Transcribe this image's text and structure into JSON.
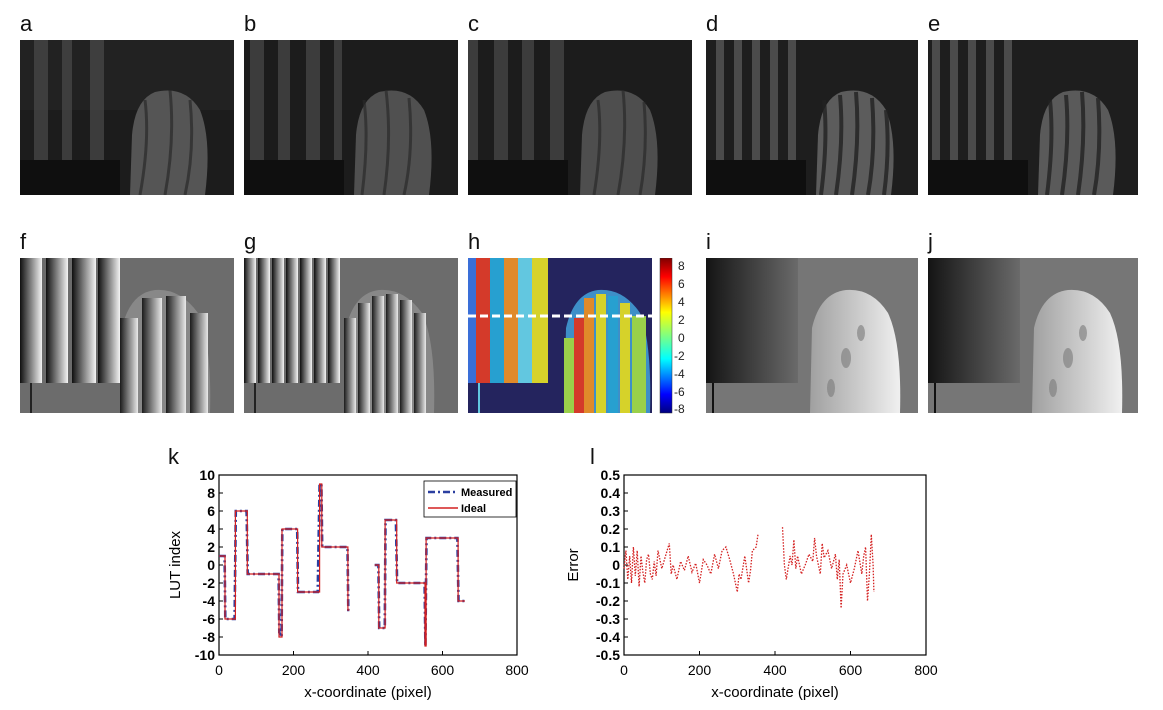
{
  "panel_labels": {
    "a": "a",
    "b": "b",
    "c": "c",
    "d": "d",
    "e": "e",
    "f": "f",
    "g": "g",
    "h": "h",
    "i": "i",
    "j": "j",
    "k": "k",
    "l": "l"
  },
  "colorbar": {
    "ticks": [
      "8",
      "6",
      "4",
      "2",
      "0",
      "-2",
      "-4",
      "-6",
      "-8"
    ]
  },
  "chart_data": [
    {
      "panel": "k",
      "type": "line",
      "xlabel": "x-coordinate (pixel)",
      "ylabel": "LUT index",
      "xlim": [
        0,
        800
      ],
      "ylim": [
        -10,
        10
      ],
      "xticks": [
        0,
        200,
        400,
        600,
        800
      ],
      "yticks": [
        10,
        8,
        6,
        4,
        2,
        0,
        -2,
        -4,
        -6,
        -8,
        -10
      ],
      "legend": "top-right",
      "series": [
        {
          "name": "Measured",
          "style": "dash-dot",
          "color": "#2b3fa0",
          "segments": [
            [
              [
                0,
                1
              ],
              [
                15,
                1
              ],
              [
                17,
                -6
              ],
              [
                42,
                -6
              ],
              [
                45,
                6
              ],
              [
                74,
                6
              ],
              [
                77,
                -1
              ],
              [
                100,
                -1
              ],
              [
                130,
                -1
              ],
              [
                140,
                -1
              ],
              [
                150,
                -1
              ],
              [
                160,
                -1
              ],
              [
                162,
                -7.5
              ],
              [
                168,
                -8
              ],
              [
                170,
                4
              ],
              [
                210,
                4
              ],
              [
                212,
                -3
              ],
              [
                255,
                -3
              ],
              [
                265,
                -3
              ],
              [
                270,
                9
              ],
              [
                275,
                9
              ],
              [
                277,
                2
              ],
              [
                300,
                2
              ],
              [
                325,
                2
              ],
              [
                345,
                2
              ],
              [
                347,
                -5
              ],
              [
                350,
                -5
              ]
            ],
            [
              [
                418,
                0
              ],
              [
                428,
                0
              ],
              [
                430,
                -7
              ],
              [
                445,
                -7
              ],
              [
                447,
                5
              ],
              [
                475,
                5
              ],
              [
                478,
                -2
              ],
              [
                520,
                -2
              ],
              [
                540,
                -2
              ],
              [
                552,
                -2
              ],
              [
                554,
                -9
              ],
              [
                557,
                3
              ],
              [
                585,
                3
              ],
              [
                620,
                3
              ],
              [
                640,
                3
              ],
              [
                643,
                -4
              ],
              [
                660,
                -4
              ]
            ]
          ]
        },
        {
          "name": "Ideal",
          "style": "solid",
          "color": "#d42020",
          "segments": [
            [
              [
                0,
                1
              ],
              [
                16,
                1
              ],
              [
                16,
                -6
              ],
              [
                44,
                -6
              ],
              [
                44,
                6
              ],
              [
                76,
                6
              ],
              [
                76,
                -1
              ],
              [
                161,
                -1
              ],
              [
                161,
                -8
              ],
              [
                169,
                -8
              ],
              [
                169,
                4
              ],
              [
                211,
                4
              ],
              [
                211,
                -3
              ],
              [
                270,
                -3
              ],
              [
                270,
                9
              ],
              [
                276,
                9
              ],
              [
                276,
                2
              ],
              [
                346,
                2
              ],
              [
                346,
                -5
              ],
              [
                350,
                -5
              ]
            ],
            [
              [
                418,
                0
              ],
              [
                429,
                0
              ],
              [
                429,
                -7
              ],
              [
                446,
                -7
              ],
              [
                446,
                5
              ],
              [
                477,
                5
              ],
              [
                477,
                -2
              ],
              [
                553,
                -2
              ],
              [
                553,
                -9
              ],
              [
                556,
                -9
              ],
              [
                556,
                3
              ],
              [
                642,
                3
              ],
              [
                642,
                -4
              ],
              [
                660,
                -4
              ]
            ]
          ]
        }
      ]
    },
    {
      "panel": "l",
      "type": "line",
      "xlabel": "x-coordinate (pixel)",
      "ylabel": "Error",
      "xlim": [
        0,
        800
      ],
      "ylim": [
        -0.5,
        0.5
      ],
      "xticks": [
        0,
        200,
        400,
        600,
        800
      ],
      "yticks": [
        "0.5",
        "0.4",
        "0.3",
        "0.2",
        "0.1",
        "0",
        "-0.1",
        "-0.2",
        "-0.3",
        "-0.4",
        "-0.5"
      ],
      "series": [
        {
          "style": "dotted",
          "color": "#d42020",
          "segments": [
            [
              [
                0,
                -0.02
              ],
              [
                5,
                0.08
              ],
              [
                10,
                -0.08
              ],
              [
                15,
                0.05
              ],
              [
                20,
                -0.1
              ],
              [
                25,
                0.1
              ],
              [
                30,
                -0.06
              ],
              [
                35,
                0.08
              ],
              [
                40,
                -0.12
              ],
              [
                45,
                0.05
              ],
              [
                50,
                -0.04
              ],
              [
                55,
                -0.1
              ],
              [
                60,
                0.03
              ],
              [
                65,
                0.06
              ],
              [
                70,
                -0.05
              ],
              [
                75,
                -0.08
              ],
              [
                80,
                0.02
              ],
              [
                85,
                -0.06
              ],
              [
                90,
                0.08
              ],
              [
                95,
                0.03
              ],
              [
                100,
                -0.02
              ],
              [
                110,
                0.05
              ],
              [
                120,
                0.12
              ],
              [
                125,
                -0.05
              ],
              [
                130,
                0.0
              ],
              [
                140,
                -0.08
              ],
              [
                150,
                0.02
              ],
              [
                160,
                -0.03
              ],
              [
                170,
                0.05
              ],
              [
                180,
                -0.04
              ],
              [
                190,
                0.01
              ],
              [
                200,
                -0.1
              ],
              [
                210,
                0.03
              ],
              [
                220,
                0.0
              ],
              [
                230,
                -0.05
              ],
              [
                240,
                0.06
              ],
              [
                250,
                -0.02
              ],
              [
                260,
                0.08
              ],
              [
                270,
                0.1
              ],
              [
                280,
                0.03
              ],
              [
                290,
                -0.05
              ],
              [
                300,
                -0.15
              ],
              [
                305,
                -0.05
              ],
              [
                310,
                -0.08
              ],
              [
                320,
                0.05
              ],
              [
                330,
                -0.1
              ],
              [
                335,
                -0.03
              ],
              [
                340,
                0.08
              ],
              [
                350,
                0.1
              ],
              [
                355,
                0.17
              ]
            ],
            [
              [
                420,
                0.21
              ],
              [
                425,
                0.0
              ],
              [
                430,
                -0.08
              ],
              [
                440,
                0.05
              ],
              [
                445,
                0.0
              ],
              [
                450,
                0.14
              ],
              [
                455,
                -0.02
              ],
              [
                460,
                0.05
              ],
              [
                470,
                -0.05
              ],
              [
                480,
                0.0
              ],
              [
                490,
                0.06
              ],
              [
                500,
                0.02
              ],
              [
                505,
                0.15
              ],
              [
                510,
                0.05
              ],
              [
                520,
                -0.05
              ],
              [
                525,
                0.12
              ],
              [
                530,
                0.04
              ],
              [
                540,
                0.08
              ],
              [
                550,
                -0.02
              ],
              [
                560,
                0.06
              ],
              [
                565,
                -0.08
              ],
              [
                570,
                0.03
              ],
              [
                575,
                -0.24
              ],
              [
                580,
                -0.05
              ],
              [
                590,
                0.0
              ],
              [
                600,
                -0.1
              ],
              [
                610,
                -0.02
              ],
              [
                620,
                0.08
              ],
              [
                630,
                -0.05
              ],
              [
                635,
                0.05
              ],
              [
                640,
                0.1
              ],
              [
                645,
                -0.2
              ],
              [
                650,
                -0.05
              ],
              [
                655,
                0.17
              ],
              [
                660,
                0.0
              ],
              [
                662,
                -0.15
              ]
            ]
          ]
        }
      ]
    }
  ]
}
